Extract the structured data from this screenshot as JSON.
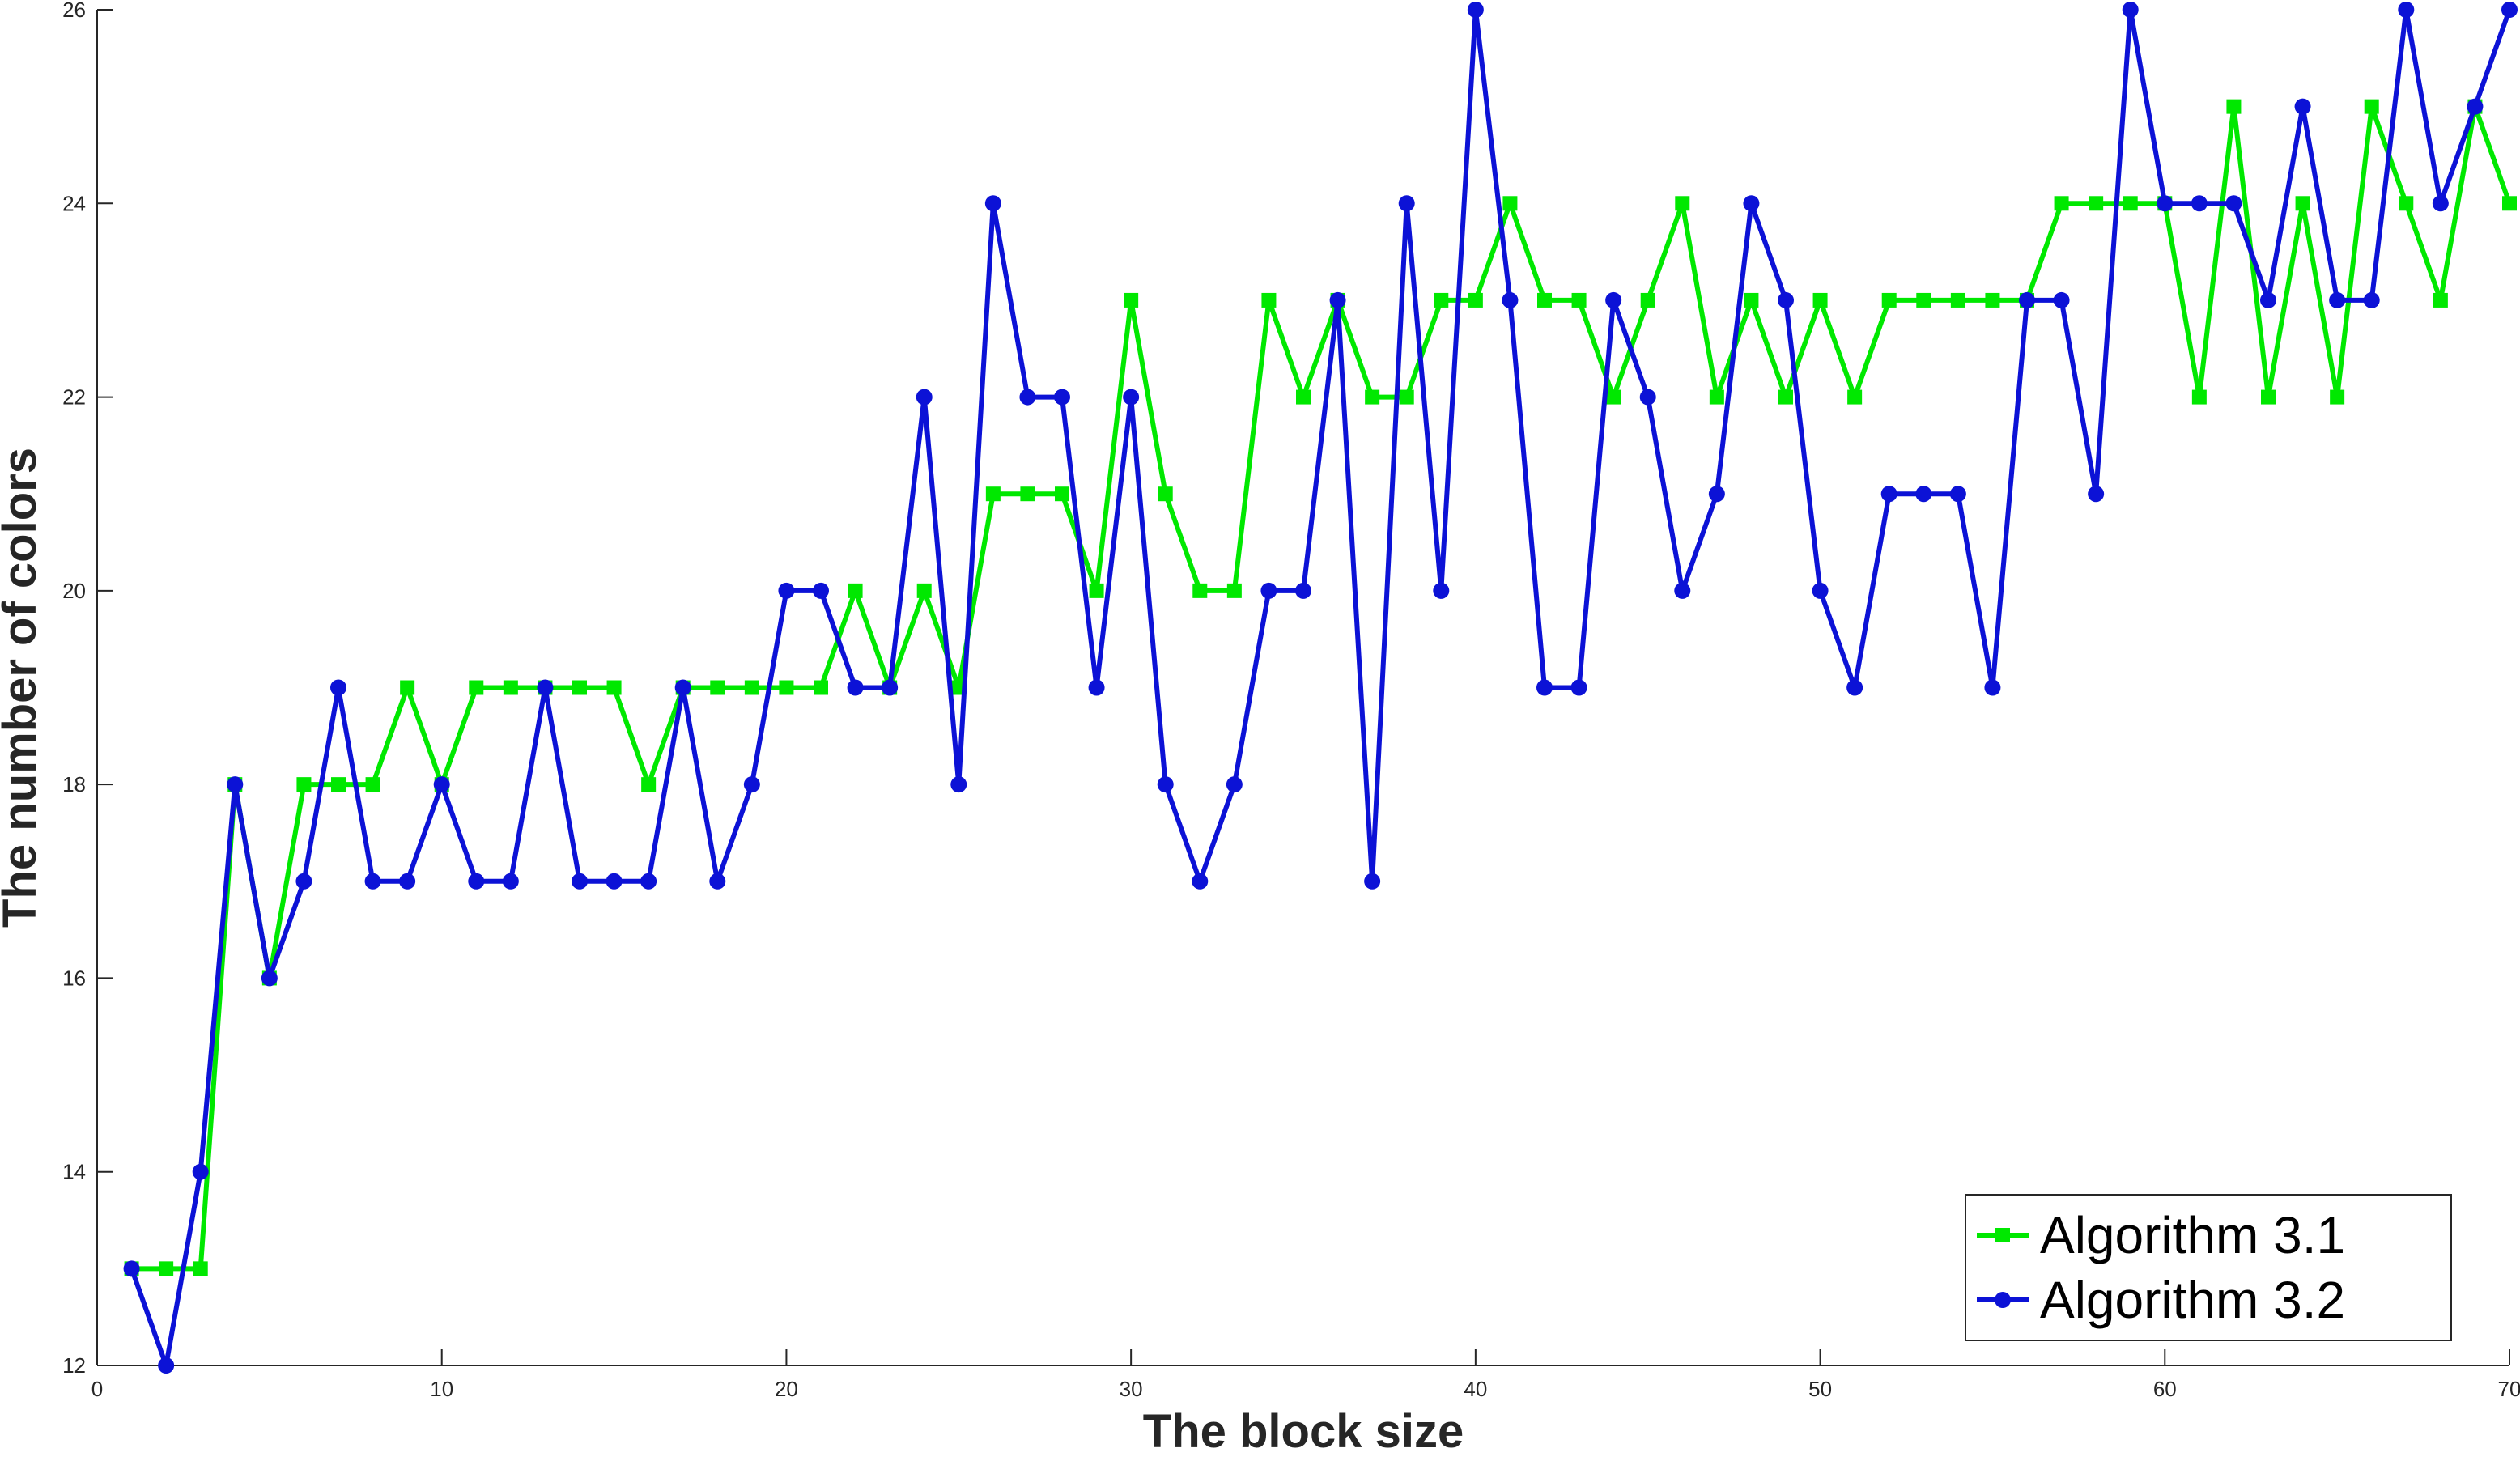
{
  "chart_data": {
    "type": "line",
    "title": "",
    "xlabel": "The block size",
    "ylabel": "The number of colors",
    "xlim": [
      0,
      70
    ],
    "ylim": [
      12,
      26
    ],
    "x_ticks": [
      0,
      10,
      20,
      30,
      40,
      50,
      60,
      70
    ],
    "y_ticks": [
      12,
      14,
      16,
      18,
      20,
      22,
      24,
      26
    ],
    "grid": false,
    "legend_position": "bottom-right",
    "x": [
      1,
      2,
      3,
      4,
      5,
      6,
      7,
      8,
      9,
      10,
      11,
      12,
      13,
      14,
      15,
      16,
      17,
      18,
      19,
      20,
      21,
      22,
      23,
      24,
      25,
      26,
      27,
      28,
      29,
      30,
      31,
      32,
      33,
      34,
      35,
      36,
      37,
      38,
      39,
      40,
      41,
      42,
      43,
      44,
      45,
      46,
      47,
      48,
      49,
      50,
      51,
      52,
      53,
      54,
      55,
      56,
      57,
      58,
      59,
      60,
      61,
      62,
      63,
      64,
      65,
      66,
      67,
      68,
      69,
      70
    ],
    "series": [
      {
        "name": "Algorithm 3.1",
        "color": "#00e800",
        "marker": "square",
        "values": [
          13,
          13,
          13,
          18,
          16,
          18,
          18,
          18,
          19,
          18,
          19,
          19,
          19,
          19,
          19,
          18,
          19,
          19,
          19,
          19,
          19,
          20,
          19,
          20,
          19,
          21,
          21,
          21,
          20,
          23,
          21,
          20,
          20,
          23,
          22,
          23,
          22,
          22,
          23,
          23,
          24,
          23,
          23,
          22,
          23,
          24,
          22,
          23,
          22,
          23,
          22,
          23,
          23,
          23,
          23,
          23,
          24,
          24,
          24,
          24,
          22,
          25,
          22,
          24,
          22,
          25,
          24,
          23,
          25,
          24
        ]
      },
      {
        "name": "Algorithm 3.2",
        "color": "#0c12d6",
        "marker": "star",
        "values": [
          13,
          12,
          14,
          18,
          16,
          17,
          19,
          17,
          17,
          18,
          17,
          17,
          19,
          17,
          17,
          17,
          19,
          17,
          18,
          20,
          20,
          19,
          19,
          22,
          18,
          24,
          22,
          22,
          19,
          22,
          18,
          17,
          18,
          20,
          20,
          23,
          17,
          24,
          20,
          26,
          23,
          19,
          19,
          23,
          22,
          20,
          21,
          24,
          23,
          20,
          19,
          21,
          21,
          21,
          19,
          23,
          23,
          21,
          26,
          24,
          24,
          24,
          23,
          25,
          23,
          23,
          26,
          24,
          25,
          26
        ]
      }
    ]
  }
}
